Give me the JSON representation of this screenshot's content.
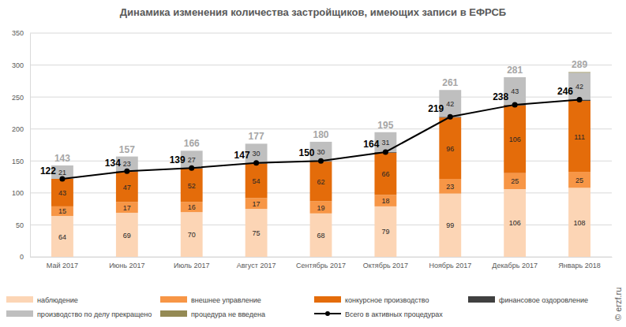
{
  "chart_data": {
    "type": "bar",
    "title": "Динамика изменения количества застройщиков, имеющих записи в ЕФРСБ",
    "categories": [
      "Май 2017",
      "Июнь 2017",
      "Июль 2017",
      "Август 2017",
      "Сентябрь 2017",
      "Октябрь 2017",
      "Ноябрь 2017",
      "Декабрь 2017",
      "Январь 2018"
    ],
    "stacked": true,
    "data_labels": true,
    "grid": true,
    "legend": "bottom",
    "ylim": [
      0,
      350
    ],
    "yticks": [
      0,
      50,
      100,
      150,
      200,
      250,
      300,
      350
    ],
    "series": [
      {
        "name": "наблюдение",
        "color": "#fcd5b5",
        "values": [
          64,
          69,
          70,
          75,
          68,
          79,
          99,
          106,
          108
        ]
      },
      {
        "name": "внешнее управление",
        "color": "#f79646",
        "values": [
          15,
          17,
          16,
          17,
          19,
          18,
          23,
          25,
          25
        ]
      },
      {
        "name": "конкурсное производство",
        "color": "#e46c0a",
        "values": [
          43,
          47,
          52,
          54,
          62,
          66,
          96,
          106,
          111
        ]
      },
      {
        "name": "финансовое оздоровление",
        "color": "#404040",
        "data_labels": false,
        "values": [
          0,
          1,
          1,
          1,
          1,
          1,
          1,
          1,
          2
        ]
      },
      {
        "name": "производство по делу прекращено",
        "color": "#bfbfbf",
        "values": [
          21,
          23,
          27,
          30,
          30,
          31,
          42,
          43,
          42
        ]
      },
      {
        "name": "процедура не введена",
        "color": "#948a54",
        "data_labels": false,
        "values": [
          0,
          0,
          0,
          0,
          0,
          0,
          0,
          0,
          1
        ]
      },
      {
        "name": "Всего в активных процедурах",
        "type": "line",
        "color": "#000000",
        "marker": "circle",
        "line_style": "solid",
        "values": [
          122,
          134,
          139,
          147,
          150,
          164,
          219,
          238,
          246
        ]
      }
    ],
    "totals": [
      143,
      157,
      166,
      177,
      180,
      195,
      261,
      281,
      289
    ],
    "annotations": [
      "© erzf.ru"
    ]
  }
}
